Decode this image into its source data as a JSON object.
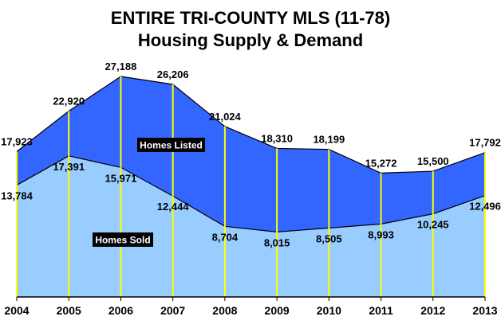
{
  "chart_data": {
    "type": "area",
    "title": "ENTIRE TRI-COUNTY MLS (11-78)",
    "subtitle": "Housing Supply & Demand",
    "categories": [
      "2004",
      "2005",
      "2006",
      "2007",
      "2008",
      "2009",
      "2010",
      "2011",
      "2012",
      "2013"
    ],
    "series": [
      {
        "name": "Homes Listed",
        "values": [
          17923,
          22920,
          27188,
          26206,
          21024,
          18310,
          18199,
          15272,
          15500,
          17792
        ],
        "labels": [
          "17,923",
          "22,920",
          "27,188",
          "26,206",
          "21,024",
          "18,310",
          "18,199",
          "15,272",
          "15,500",
          "17,792"
        ],
        "color": "#3366ff"
      },
      {
        "name": "Homes Sold",
        "values": [
          13784,
          17391,
          15971,
          12444,
          8704,
          8015,
          8505,
          8993,
          10245,
          12496
        ],
        "labels": [
          "13,784",
          "17,391",
          "15,971",
          "12,444",
          "8,704",
          "8,015",
          "8,505",
          "8,993",
          "10,245",
          "12,496"
        ],
        "color": "#99ccff"
      }
    ],
    "ylim": [
      0,
      27188
    ],
    "gridline_color": "#ffff00",
    "grid": "vertical lines at each year",
    "legend": "inline labels"
  }
}
